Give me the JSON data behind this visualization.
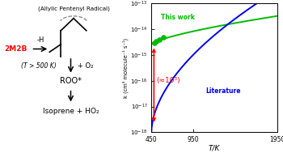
{
  "xlabel": "T/K",
  "ylabel": "k (cm³ molecule⁻¹ s⁻¹)",
  "xlim": [
    450,
    1950
  ],
  "ylim_log": [
    -18,
    -13
  ],
  "this_work_line_color": "#00bb00",
  "literature_line_color": "#0000ee",
  "arrow_color": "#ff0000",
  "data_points_x": [
    488,
    510,
    540,
    590
  ],
  "data_points_y": [
    -14.55,
    -14.48,
    -14.42,
    -14.32
  ],
  "this_work_label": "This work",
  "literature_label": "Literature",
  "annotation_text": "(≈10³)",
  "xticks": [
    450,
    950,
    1950
  ],
  "yticks": [
    -18,
    -17,
    -16,
    -15,
    -14,
    -13
  ]
}
